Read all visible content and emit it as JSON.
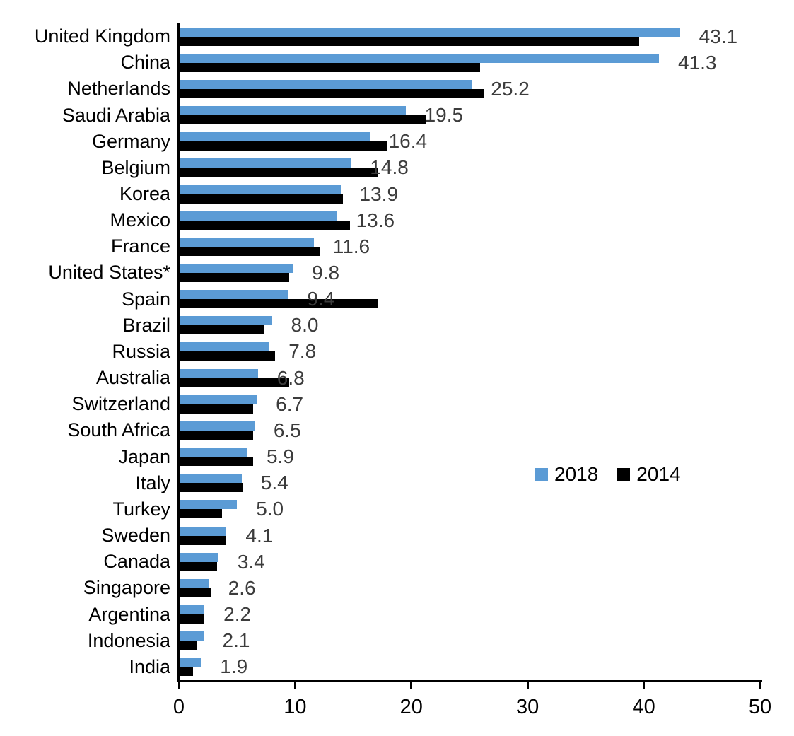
{
  "chart_data": {
    "type": "bar",
    "orientation": "horizontal",
    "title": "",
    "xlabel": "",
    "ylabel": "",
    "xlim": [
      0,
      50
    ],
    "x_ticks": [
      "0",
      "10",
      "20",
      "30",
      "40",
      "50"
    ],
    "grid": false,
    "legend_position": "middle-right",
    "categories": [
      "United Kingdom",
      "China",
      "Netherlands",
      "Saudi Arabia",
      "Germany",
      "Belgium",
      "Korea",
      "Mexico",
      "France",
      "United States*",
      "Spain",
      "Brazil",
      "Russia",
      "Australia",
      "Switzerland",
      "South Africa",
      "Japan",
      "Italy",
      "Turkey",
      "Sweden",
      "Canada",
      "Singapore",
      "Argentina",
      "Indonesia",
      "India"
    ],
    "series": [
      {
        "name": "2018",
        "color": "#5B9BD5",
        "values": [
          43.1,
          41.3,
          25.2,
          19.5,
          16.4,
          14.8,
          13.9,
          13.6,
          11.6,
          9.8,
          9.4,
          8.0,
          7.8,
          6.8,
          6.7,
          6.5,
          5.9,
          5.4,
          5.0,
          4.1,
          3.4,
          2.6,
          2.2,
          2.1,
          1.9
        ]
      },
      {
        "name": "2014",
        "color": "#000000",
        "values": [
          39.6,
          25.9,
          26.3,
          21.3,
          17.9,
          17.1,
          14.1,
          14.7,
          12.1,
          9.5,
          17.1,
          7.3,
          8.3,
          9.5,
          6.4,
          6.4,
          6.4,
          5.5,
          3.7,
          4.0,
          3.3,
          2.8,
          2.1,
          1.6,
          1.2
        ]
      }
    ],
    "data_labels": [
      "43.1",
      "41.3",
      "25.2",
      "19.5",
      "16.4",
      "14.8",
      "13.9",
      "13.6",
      "11.6",
      "9.8",
      "9.4",
      "8.0",
      "7.8",
      "6.8",
      "6.7",
      "6.5",
      "5.9",
      "5.4",
      "5.0",
      "4.1",
      "3.4",
      "2.6",
      "2.2",
      "2.1",
      "1.9"
    ],
    "data_label_color": "#3c3c3c",
    "axis_color": "#000000"
  }
}
